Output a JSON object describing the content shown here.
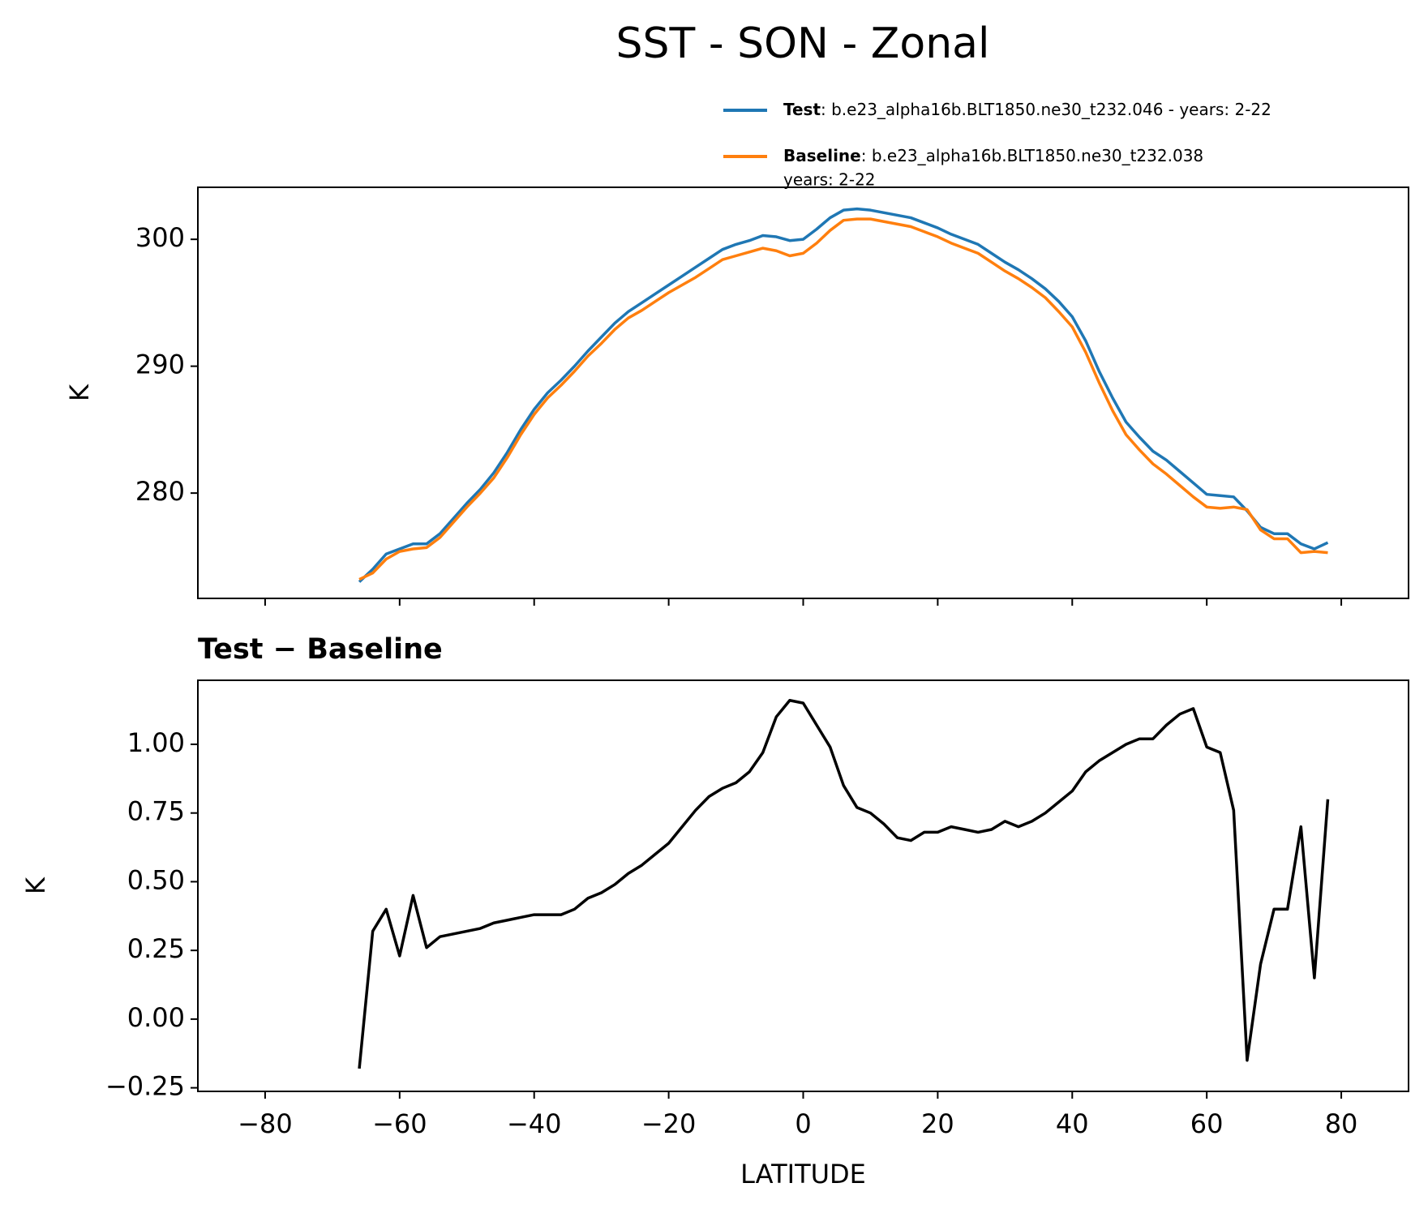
{
  "title": "SST - SON - Zonal",
  "chart_data": [
    {
      "type": "line",
      "x": [
        -66,
        -64,
        -62,
        -60,
        -58,
        -56,
        -54,
        -52,
        -50,
        -48,
        -46,
        -44,
        -42,
        -40,
        -38,
        -36,
        -34,
        -32,
        -30,
        -28,
        -26,
        -24,
        -22,
        -20,
        -18,
        -16,
        -14,
        -12,
        -10,
        -8,
        -6,
        -4,
        -2,
        0,
        2,
        4,
        6,
        8,
        10,
        12,
        14,
        16,
        18,
        20,
        22,
        24,
        26,
        28,
        30,
        32,
        34,
        36,
        38,
        40,
        42,
        44,
        46,
        48,
        50,
        52,
        54,
        56,
        58,
        60,
        62,
        64,
        66,
        68,
        70,
        72,
        74,
        76,
        78
      ],
      "series": [
        {
          "name": "Test",
          "description": [
            ": b.e23_alpha16b.BLT1850.ne30_t232.046 - years: 2-22"
          ],
          "color": "#1f77b4",
          "values": [
            273.0,
            274.0,
            275.2,
            275.6,
            276.0,
            276.0,
            276.8,
            278.0,
            279.2,
            280.3,
            281.6,
            283.2,
            285.0,
            286.6,
            287.9,
            288.9,
            290.0,
            291.2,
            292.3,
            293.4,
            294.3,
            295.0,
            295.7,
            296.4,
            297.1,
            297.8,
            298.5,
            299.2,
            299.6,
            299.9,
            300.3,
            300.2,
            299.9,
            300.0,
            300.8,
            301.7,
            302.3,
            302.4,
            302.3,
            302.1,
            301.9,
            301.7,
            301.3,
            300.9,
            300.4,
            300.0,
            299.6,
            298.9,
            298.2,
            297.6,
            296.9,
            296.1,
            295.1,
            293.9,
            292.0,
            289.6,
            287.5,
            285.6,
            284.4,
            283.3,
            282.6,
            281.7,
            280.8,
            279.9,
            279.8,
            279.7,
            278.6,
            277.3,
            276.8,
            276.8,
            276.0,
            275.6,
            276.1
          ]
        },
        {
          "name": "Baseline",
          "description": [
            ": b.e23_alpha16b.BLT1850.ne30_t232.038",
            "years: 2-22"
          ],
          "color": "#ff7f0e",
          "values": [
            273.2,
            273.7,
            274.8,
            275.4,
            275.6,
            275.7,
            276.5,
            277.7,
            278.9,
            280.0,
            281.2,
            282.8,
            284.6,
            286.2,
            287.5,
            288.5,
            289.6,
            290.8,
            291.8,
            292.9,
            293.8,
            294.4,
            295.1,
            295.8,
            296.4,
            297.0,
            297.7,
            298.4,
            298.7,
            299.0,
            299.3,
            299.1,
            298.7,
            298.9,
            299.7,
            300.7,
            301.5,
            301.6,
            301.6,
            301.4,
            301.2,
            301.0,
            300.6,
            300.2,
            299.7,
            299.3,
            298.9,
            298.2,
            297.5,
            296.9,
            296.2,
            295.4,
            294.3,
            293.1,
            291.1,
            288.7,
            286.5,
            284.6,
            283.4,
            282.3,
            281.5,
            280.6,
            279.7,
            278.9,
            278.8,
            278.9,
            278.7,
            277.1,
            276.4,
            276.4,
            275.3,
            275.4,
            275.3
          ]
        }
      ],
      "ylabel": "K",
      "xlim": [
        -90,
        90
      ],
      "xticks": [
        -80,
        -60,
        -40,
        -20,
        0,
        20,
        40,
        60,
        80
      ],
      "ylim": [
        271.7,
        304.1
      ],
      "yticks": [
        280,
        290,
        300
      ]
    },
    {
      "type": "line",
      "title": "Test − Baseline",
      "x": [
        -66,
        -64,
        -62,
        -60,
        -58,
        -56,
        -54,
        -52,
        -50,
        -48,
        -46,
        -44,
        -42,
        -40,
        -38,
        -36,
        -34,
        -32,
        -30,
        -28,
        -26,
        -24,
        -22,
        -20,
        -18,
        -16,
        -14,
        -12,
        -10,
        -8,
        -6,
        -4,
        -2,
        0,
        2,
        4,
        6,
        8,
        10,
        12,
        14,
        16,
        18,
        20,
        22,
        24,
        26,
        28,
        30,
        32,
        34,
        36,
        38,
        40,
        42,
        44,
        46,
        48,
        50,
        52,
        54,
        56,
        58,
        60,
        62,
        64,
        66,
        68,
        70,
        72,
        74,
        76,
        78
      ],
      "series": [
        {
          "color": "#000000",
          "values": [
            -0.18,
            0.32,
            0.4,
            0.23,
            0.45,
            0.26,
            0.3,
            0.31,
            0.32,
            0.33,
            0.35,
            0.36,
            0.37,
            0.38,
            0.38,
            0.38,
            0.4,
            0.44,
            0.46,
            0.49,
            0.53,
            0.56,
            0.6,
            0.64,
            0.7,
            0.76,
            0.81,
            0.84,
            0.86,
            0.9,
            0.97,
            1.1,
            1.16,
            1.15,
            1.07,
            0.99,
            0.85,
            0.77,
            0.75,
            0.71,
            0.66,
            0.65,
            0.68,
            0.68,
            0.7,
            0.69,
            0.68,
            0.69,
            0.72,
            0.7,
            0.72,
            0.75,
            0.79,
            0.83,
            0.9,
            0.94,
            0.97,
            1.0,
            1.02,
            1.02,
            1.07,
            1.11,
            1.13,
            0.99,
            0.97,
            0.76,
            -0.15,
            0.2,
            0.4,
            0.4,
            0.7,
            0.15,
            0.8
          ]
        }
      ],
      "xlabel": "LATITUDE",
      "ylabel": "K",
      "xlim": [
        -90,
        90
      ],
      "xticks": [
        {
          "value": -80,
          "label": "−80"
        },
        {
          "value": -60,
          "label": "−60"
        },
        {
          "value": -40,
          "label": "−40"
        },
        {
          "value": -20,
          "label": "−20"
        },
        0,
        20,
        40,
        60,
        80
      ],
      "ylim": [
        -0.263,
        1.233
      ],
      "yticks": [
        {
          "value": -0.25,
          "label": "−0.25"
        },
        {
          "value": 0,
          "label": "0.00"
        },
        {
          "value": 0.25,
          "label": "0.25"
        },
        {
          "value": 0.5,
          "label": "0.50"
        },
        {
          "value": 0.75,
          "label": "0.75"
        },
        {
          "value": 1,
          "label": "1.00"
        }
      ]
    }
  ]
}
